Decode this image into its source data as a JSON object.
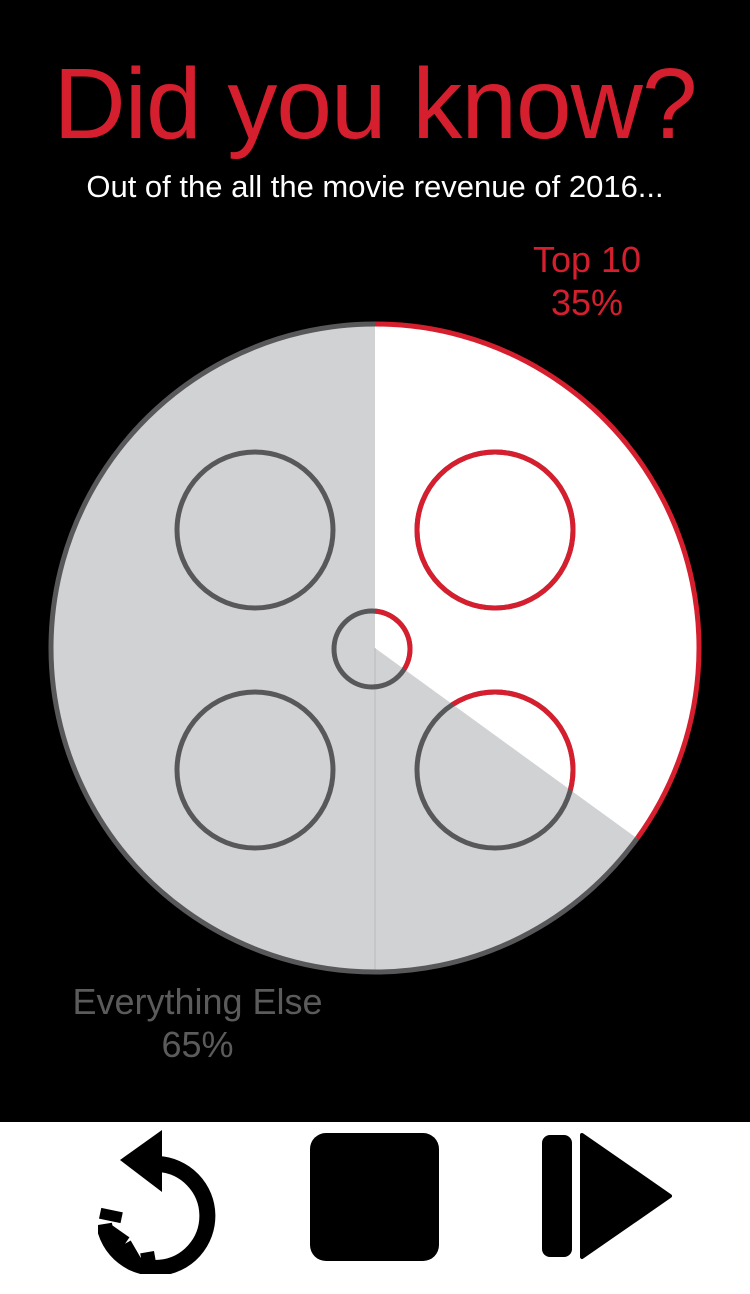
{
  "title": "Did you know?",
  "subtitle": "Out of the all the movie revenue of 2016...",
  "colors": {
    "accent": "#d51f2e",
    "gray_text": "#5b5b5b",
    "gray_fill": "#d1d2d4",
    "gray_stroke": "#58585a",
    "white": "#ffffff",
    "background": "#000000"
  },
  "chart_data": {
    "type": "pie",
    "categories": [
      "Top 10",
      "Everything Else"
    ],
    "values": [
      35,
      65
    ],
    "labels": [
      {
        "name": "Top 10",
        "value_text": "35%"
      },
      {
        "name": "Everything Else",
        "value_text": "65%"
      }
    ],
    "start": "12 o'clock, clockwise",
    "style": "film reel"
  },
  "controls": {
    "replay_icon": "replay-icon",
    "stop_icon": "stop-icon",
    "step_forward_icon": "step-forward-icon"
  }
}
